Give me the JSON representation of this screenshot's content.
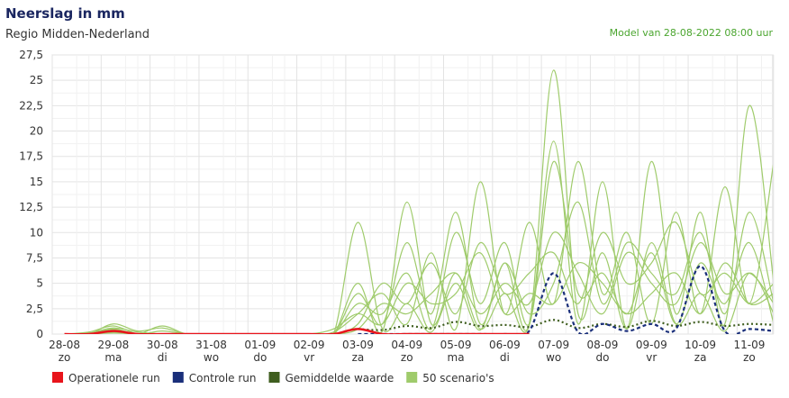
{
  "chart_data": {
    "type": "line",
    "title": "Neerslag in mm",
    "subtitle": "Regio Midden-Nederland",
    "annotation": "Model van 28-08-2022 08:00 uur",
    "x": [
      0,
      0.5,
      1,
      1.5,
      2,
      2.5,
      3,
      3.5,
      4,
      4.5,
      5,
      5.5,
      6,
      6.5,
      7,
      7.5,
      8,
      8.5,
      9,
      9.5,
      10,
      10.5,
      11,
      11.5,
      12,
      12.5,
      13,
      13.5,
      14,
      14.5
    ],
    "xlim": [
      -0.25,
      14.48
    ],
    "xticks": [
      {
        "value": 0,
        "label": "28-08",
        "sublabel": "zo"
      },
      {
        "value": 1,
        "label": "29-08",
        "sublabel": "ma"
      },
      {
        "value": 2,
        "label": "30-08",
        "sublabel": "di"
      },
      {
        "value": 3,
        "label": "31-08",
        "sublabel": "wo"
      },
      {
        "value": 4,
        "label": "01-09",
        "sublabel": "do"
      },
      {
        "value": 5,
        "label": "02-09",
        "sublabel": "vr"
      },
      {
        "value": 6,
        "label": "03-09",
        "sublabel": "za"
      },
      {
        "value": 7,
        "label": "04-09",
        "sublabel": "zo"
      },
      {
        "value": 8,
        "label": "05-09",
        "sublabel": "ma"
      },
      {
        "value": 9,
        "label": "06-09",
        "sublabel": "di"
      },
      {
        "value": 10,
        "label": "07-09",
        "sublabel": "wo"
      },
      {
        "value": 11,
        "label": "08-09",
        "sublabel": "do"
      },
      {
        "value": 12,
        "label": "09-09",
        "sublabel": "vr"
      },
      {
        "value": 13,
        "label": "10-09",
        "sublabel": "za"
      },
      {
        "value": 14,
        "label": "11-09",
        "sublabel": "zo"
      }
    ],
    "ylim": [
      0,
      27.5
    ],
    "yticks": [
      0,
      {
        "value": 2.5,
        "label": "2,5"
      },
      5,
      {
        "value": 7.5,
        "label": "7,5"
      },
      10,
      {
        "value": 12.5,
        "label": "12,5"
      },
      15,
      {
        "value": 17.5,
        "label": "17,5"
      },
      20,
      {
        "value": 22.5,
        "label": "22,5"
      },
      25,
      {
        "value": 27.5,
        "label": "27,5"
      }
    ],
    "grid": true,
    "series": [
      {
        "name": "Operationele run",
        "color": "#e8141b",
        "values": [
          0,
          0,
          0.3,
          0,
          0,
          0,
          0,
          0,
          0,
          0,
          0,
          0,
          0.5,
          0,
          0,
          0,
          0,
          0,
          0,
          0,
          null,
          null,
          null,
          null,
          null,
          null,
          null,
          null,
          null,
          null
        ]
      },
      {
        "name": "Controle run",
        "color": "#1a2f7a",
        "dash": "4 3",
        "values": [
          null,
          null,
          null,
          null,
          null,
          null,
          null,
          null,
          null,
          null,
          null,
          null,
          0,
          0,
          0,
          0,
          0,
          0,
          0,
          0.3,
          6,
          0.2,
          1,
          0.3,
          1,
          0.5,
          6.7,
          0.3,
          0.5,
          0.3
        ]
      },
      {
        "name": "Gemiddelde waarde",
        "color": "#3f5e1f",
        "dash": "2 3",
        "values": [
          null,
          null,
          null,
          null,
          null,
          null,
          null,
          null,
          null,
          null,
          null,
          null,
          0.5,
          0.4,
          0.8,
          0.6,
          1.2,
          0.8,
          0.9,
          0.7,
          1.4,
          0.6,
          1,
          0.7,
          1.3,
          0.8,
          1.2,
          0.8,
          1,
          0.9
        ]
      },
      {
        "name": "50 scenario's",
        "color": "#9fcb6b",
        "members": [
          [
            0,
            0,
            1,
            0.3,
            0.6,
            0,
            0,
            0,
            0,
            0,
            0,
            0,
            11,
            0.5,
            3,
            0.2,
            5,
            0.4,
            7,
            1,
            26,
            2,
            8,
            0.5,
            9,
            1,
            4,
            0.3,
            6,
            2
          ],
          [
            0,
            0.2,
            0.8,
            0,
            0,
            0,
            0,
            0,
            0,
            0,
            0,
            0,
            5,
            0.3,
            13,
            1,
            6,
            0.5,
            4,
            0.8,
            19,
            1,
            15,
            0.6,
            17,
            2,
            12,
            1,
            22.5,
            5
          ],
          [
            0,
            0,
            0.5,
            0,
            0.3,
            0,
            0,
            0,
            0,
            0,
            0,
            0.2,
            2,
            4,
            1,
            8,
            0.5,
            15,
            2,
            11,
            3,
            17,
            4,
            10,
            1,
            12,
            2,
            14.5,
            3,
            17
          ],
          [
            0,
            0,
            0.3,
            0,
            0,
            0,
            0,
            0,
            0,
            0,
            0,
            0,
            4,
            1,
            9,
            2,
            12,
            1,
            7,
            2,
            5,
            13,
            3,
            9,
            6,
            4,
            10,
            2,
            12,
            3
          ],
          [
            0,
            0.1,
            0.6,
            0.2,
            0,
            0,
            0,
            0,
            0,
            0,
            0,
            0,
            3,
            2,
            6,
            0.5,
            10,
            3,
            9,
            1,
            17,
            4,
            6,
            2,
            8,
            1,
            7,
            3,
            9,
            1
          ],
          [
            0,
            0,
            0.2,
            0,
            0.8,
            0,
            0,
            0,
            0,
            0,
            0,
            0,
            1,
            5,
            3,
            7,
            2,
            9,
            4,
            6,
            8,
            3,
            10,
            5,
            7,
            11,
            4,
            6,
            3,
            5
          ],
          [
            0,
            0,
            0.4,
            0,
            0,
            0,
            0,
            0,
            0,
            0,
            0,
            0,
            0.5,
            3,
            2,
            4,
            6,
            2,
            5,
            3,
            10,
            6,
            2,
            8,
            5,
            3,
            9,
            4,
            6,
            3
          ],
          [
            0,
            0,
            0.1,
            0,
            0,
            0,
            0,
            0,
            0,
            0,
            0,
            0.5,
            2,
            1,
            5,
            3,
            4,
            8,
            2,
            4,
            3,
            7,
            5,
            2,
            4,
            6,
            2,
            7,
            3,
            4
          ]
        ]
      }
    ]
  }
}
